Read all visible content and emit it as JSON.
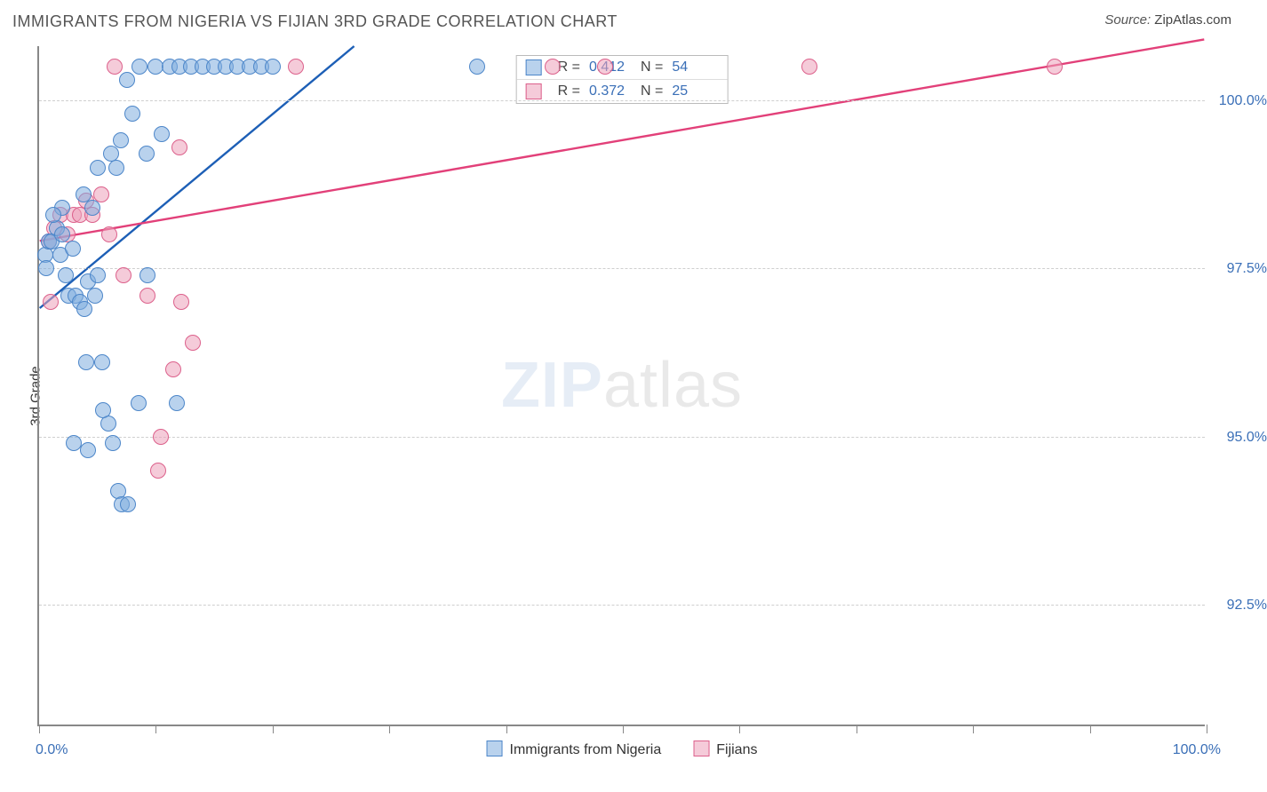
{
  "title": "IMMIGRANTS FROM NIGERIA VS FIJIAN 3RD GRADE CORRELATION CHART",
  "source_label": "Source:",
  "source_value": "ZipAtlas.com",
  "watermark_a": "ZIP",
  "watermark_b": "atlas",
  "chart": {
    "type": "scatter",
    "ylabel": "3rd Grade",
    "xlim": [
      0,
      100
    ],
    "ylim": [
      90.7,
      100.8
    ],
    "x_label_min": "0.0%",
    "x_label_max": "100.0%",
    "yticks": [
      92.5,
      95.0,
      97.5,
      100.0
    ],
    "ytick_labels": [
      "92.5%",
      "95.0%",
      "97.5%",
      "100.0%"
    ],
    "xticks": [
      0,
      10,
      20,
      30,
      40,
      50,
      60,
      70,
      80,
      90,
      100
    ],
    "background_color": "#ffffff",
    "grid_color": "#cfcfcf",
    "axis_color": "#888888",
    "label_color": "#3a6fb7",
    "label_fontsize": 16,
    "title_fontsize": 18,
    "marker_size": 18,
    "marker_opacity": 0.55,
    "series": [
      {
        "name": "Immigrants from Nigeria",
        "color": "#5b93d6",
        "fill": "rgba(128,173,222,0.55)",
        "stroke": "#4c86c9",
        "R": "0.412",
        "N": "54",
        "trend": {
          "x1": 0,
          "y1": 96.9,
          "x2": 27,
          "y2": 100.8,
          "width": 2.4,
          "color": "#1d5fb6"
        },
        "points": [
          [
            0.5,
            97.7
          ],
          [
            0.6,
            97.5
          ],
          [
            0.8,
            97.9
          ],
          [
            1.1,
            97.9
          ],
          [
            1.5,
            98.1
          ],
          [
            1.8,
            97.7
          ],
          [
            2.0,
            98.0
          ],
          [
            2.3,
            97.4
          ],
          [
            2.5,
            97.1
          ],
          [
            2.9,
            97.8
          ],
          [
            3.1,
            97.1
          ],
          [
            3.5,
            97.0
          ],
          [
            3.9,
            96.9
          ],
          [
            4.2,
            97.3
          ],
          [
            4.8,
            97.1
          ],
          [
            5.0,
            97.4
          ],
          [
            5.4,
            96.1
          ],
          [
            5.9,
            95.2
          ],
          [
            6.3,
            94.9
          ],
          [
            6.8,
            94.2
          ],
          [
            7.1,
            94.0
          ],
          [
            7.6,
            94.0
          ],
          [
            3.0,
            94.9
          ],
          [
            4.2,
            94.8
          ],
          [
            5.5,
            95.4
          ],
          [
            4.0,
            96.1
          ],
          [
            8.5,
            95.5
          ],
          [
            9.3,
            97.4
          ],
          [
            11.8,
            95.5
          ],
          [
            6.2,
            99.2
          ],
          [
            7.0,
            99.4
          ],
          [
            7.5,
            100.3
          ],
          [
            8.0,
            99.8
          ],
          [
            8.6,
            100.5
          ],
          [
            9.2,
            99.2
          ],
          [
            10.0,
            100.5
          ],
          [
            10.5,
            99.5
          ],
          [
            11.2,
            100.5
          ],
          [
            12.0,
            100.5
          ],
          [
            13.0,
            100.5
          ],
          [
            14.0,
            100.5
          ],
          [
            15.0,
            100.5
          ],
          [
            16.0,
            100.5
          ],
          [
            17.0,
            100.5
          ],
          [
            18.0,
            100.5
          ],
          [
            19.0,
            100.5
          ],
          [
            20.0,
            100.5
          ],
          [
            37.5,
            100.5
          ],
          [
            5.0,
            99.0
          ],
          [
            6.6,
            99.0
          ],
          [
            3.8,
            98.6
          ],
          [
            4.6,
            98.4
          ],
          [
            2.0,
            98.4
          ],
          [
            1.2,
            98.3
          ]
        ]
      },
      {
        "name": "Fijians",
        "color": "#e16a92",
        "fill": "rgba(236,160,186,0.55)",
        "stroke": "#dc608b",
        "R": "0.372",
        "N": "25",
        "trend": {
          "x1": 0,
          "y1": 97.9,
          "x2": 100,
          "y2": 100.9,
          "width": 2.4,
          "color": "#e24079"
        },
        "points": [
          [
            0.8,
            97.9
          ],
          [
            1.3,
            98.1
          ],
          [
            1.8,
            98.3
          ],
          [
            2.4,
            98.0
          ],
          [
            3.0,
            98.3
          ],
          [
            3.5,
            98.3
          ],
          [
            4.0,
            98.5
          ],
          [
            4.6,
            98.3
          ],
          [
            5.3,
            98.6
          ],
          [
            6.0,
            98.0
          ],
          [
            7.2,
            97.4
          ],
          [
            9.3,
            97.1
          ],
          [
            12.2,
            97.0
          ],
          [
            13.2,
            96.4
          ],
          [
            11.5,
            96.0
          ],
          [
            10.2,
            94.5
          ],
          [
            10.4,
            95.0
          ],
          [
            6.5,
            100.5
          ],
          [
            12.0,
            99.3
          ],
          [
            22.0,
            100.5
          ],
          [
            44.0,
            100.5
          ],
          [
            48.5,
            100.5
          ],
          [
            66.0,
            100.5
          ],
          [
            87.0,
            100.5
          ],
          [
            1.0,
            97.0
          ]
        ]
      }
    ]
  }
}
